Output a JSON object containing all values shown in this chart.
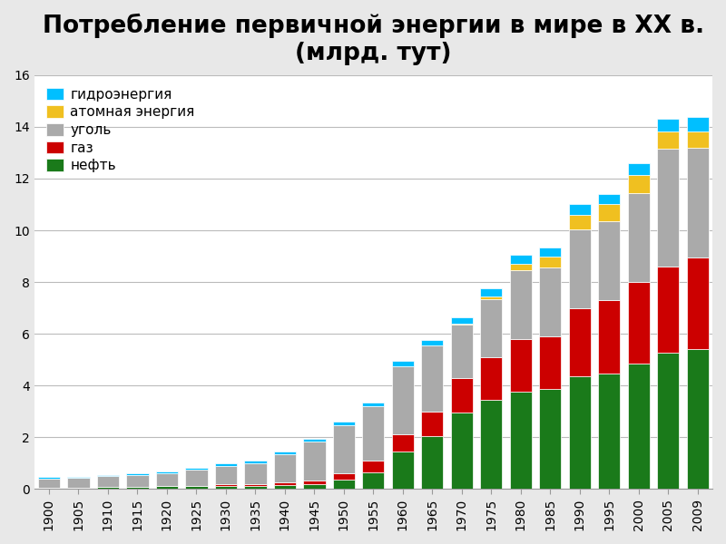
{
  "title": "Потребление первичной энергии в мире в XX в.\n(млрд. тут)",
  "years": [
    1900,
    1905,
    1910,
    1915,
    1920,
    1925,
    1930,
    1935,
    1940,
    1945,
    1950,
    1955,
    1960,
    1965,
    1970,
    1975,
    1980,
    1985,
    1990,
    1995,
    2000,
    2005,
    2009
  ],
  "нефть": [
    0.05,
    0.05,
    0.07,
    0.08,
    0.1,
    0.12,
    0.13,
    0.12,
    0.15,
    0.18,
    0.35,
    0.65,
    1.45,
    2.05,
    2.95,
    3.45,
    3.75,
    3.85,
    4.35,
    4.45,
    4.85,
    5.25,
    5.4
  ],
  "газ": [
    0.0,
    0.0,
    0.0,
    0.0,
    0.0,
    0.0,
    0.05,
    0.05,
    0.1,
    0.15,
    0.25,
    0.45,
    0.65,
    0.95,
    1.35,
    1.65,
    2.05,
    2.05,
    2.65,
    2.85,
    3.15,
    3.35,
    3.55
  ],
  "уголь": [
    0.35,
    0.38,
    0.43,
    0.47,
    0.52,
    0.62,
    0.72,
    0.83,
    1.1,
    1.5,
    1.85,
    2.1,
    2.65,
    2.55,
    2.05,
    2.25,
    2.65,
    2.65,
    3.05,
    3.05,
    3.45,
    4.55,
    4.25
  ],
  "атомная энергия": [
    0.0,
    0.0,
    0.0,
    0.0,
    0.0,
    0.0,
    0.0,
    0.0,
    0.0,
    0.0,
    0.0,
    0.0,
    0.0,
    0.0,
    0.05,
    0.1,
    0.25,
    0.45,
    0.55,
    0.65,
    0.68,
    0.68,
    0.62
  ],
  "гидроэнергия": [
    0.05,
    0.05,
    0.05,
    0.05,
    0.05,
    0.06,
    0.1,
    0.1,
    0.1,
    0.1,
    0.15,
    0.15,
    0.2,
    0.2,
    0.25,
    0.3,
    0.35,
    0.35,
    0.4,
    0.4,
    0.45,
    0.5,
    0.55
  ],
  "colors": {
    "нефть": "#1a7a1a",
    "газ": "#cc0000",
    "уголь": "#aaaaaa",
    "атомная энергия": "#f0c020",
    "гидроэнергия": "#00bfff"
  },
  "ylim": [
    0,
    16
  ],
  "yticks": [
    0,
    2,
    4,
    6,
    8,
    10,
    12,
    14,
    16
  ],
  "outer_bg": "#e8e8e8",
  "inner_bg": "#ffffff",
  "title_fontsize": 19,
  "legend_fontsize": 11,
  "tick_fontsize": 10
}
